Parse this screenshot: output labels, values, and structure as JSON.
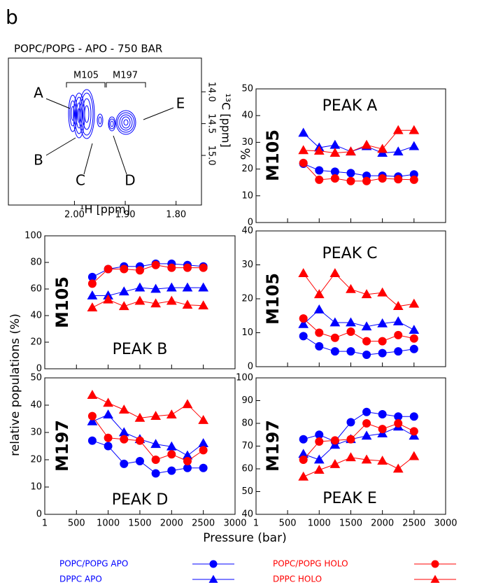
{
  "figure": {
    "panel_label": "b",
    "ylabel": "relative populations (%)",
    "xlabel": "Pressure (bar)"
  },
  "chart_data": [
    {
      "type": "spectrum",
      "title": "POPC/POPG - APO - 750 BAR",
      "xlabel": "¹H [ppm]",
      "ylabel": "¹³C [ppm]",
      "xlim": [
        2.13,
        1.75
      ],
      "ylim": [
        13.47,
        15.78
      ],
      "xticks": [
        {
          "value": 2,
          "label": "2.00"
        },
        {
          "value": 1.9,
          "label": "1.90"
        },
        {
          "value": 1.8,
          "label": "1.80"
        }
      ],
      "yticks": [
        {
          "value": 14,
          "label": "14.0"
        },
        {
          "value": 14.5,
          "label": "14.5"
        },
        {
          "value": 15,
          "label": "15.0"
        }
      ],
      "annotations": [
        "A",
        "B",
        "C",
        "D",
        "E",
        "M105",
        "M197"
      ]
    },
    {
      "type": "line",
      "title": "PEAK A",
      "side_label": "M105",
      "ylabel": "%",
      "x": [
        750,
        1000,
        1250,
        1500,
        1750,
        2000,
        2250,
        2500
      ],
      "xlim": [
        1,
        3000
      ],
      "xticks": [
        1,
        500,
        1000,
        1500,
        2000,
        2500,
        3000
      ],
      "ylim": [
        0,
        50
      ],
      "yticks": [
        0,
        10,
        20,
        30,
        40,
        50
      ],
      "series": [
        {
          "name": "POPC/POPG APO",
          "color": "#0000ff",
          "marker": "circle",
          "values": [
            22,
            19.5,
            19,
            18.5,
            17.5,
            17.5,
            17.2,
            18
          ]
        },
        {
          "name": "DPPC APO",
          "color": "#0000ff",
          "marker": "triangle",
          "values": [
            33.5,
            28,
            29,
            26.5,
            28.5,
            26,
            26.5,
            28.5
          ]
        },
        {
          "name": "POPC/POPG HOLO",
          "color": "#ff0000",
          "marker": "circle",
          "values": [
            22.3,
            16,
            16.5,
            15.5,
            15.5,
            16.5,
            16.2,
            16
          ]
        },
        {
          "name": "DPPC HOLO",
          "color": "#ff0000",
          "marker": "triangle",
          "values": [
            27,
            26.8,
            26,
            26.5,
            29,
            27.5,
            34.5,
            34.5
          ]
        }
      ]
    },
    {
      "type": "line",
      "title": "PEAK B",
      "side_label": "M105",
      "x": [
        750,
        1000,
        1250,
        1500,
        1750,
        2000,
        2250,
        2500
      ],
      "xlim": [
        1,
        3000
      ],
      "xticks": [
        1,
        500,
        1000,
        1500,
        2000,
        2500,
        3000
      ],
      "ylim": [
        0,
        100
      ],
      "yticks": [
        0,
        20,
        40,
        60,
        80,
        100
      ],
      "series": [
        {
          "values": [
            69,
            75,
            77,
            77,
            79,
            79,
            78,
            77
          ]
        },
        {
          "values": [
            55,
            55,
            58,
            61,
            60,
            61,
            61,
            61
          ]
        },
        {
          "values": [
            64,
            75,
            75,
            74,
            78,
            76,
            76,
            76
          ]
        },
        {
          "values": [
            46,
            52,
            47,
            51,
            49,
            51,
            48,
            47.5
          ]
        }
      ]
    },
    {
      "type": "line",
      "title": "PEAK C",
      "side_label": "M105",
      "x": [
        750,
        1000,
        1250,
        1500,
        1750,
        2000,
        2250,
        2500
      ],
      "xlim": [
        1,
        3000
      ],
      "xticks": [
        1,
        500,
        1000,
        1500,
        2000,
        2500,
        3000
      ],
      "ylim": [
        0,
        40
      ],
      "yticks": [
        0,
        10,
        20,
        30,
        40
      ],
      "series": [
        {
          "values": [
            9,
            6,
            4.5,
            4.5,
            3.5,
            4,
            4.5,
            5.2
          ]
        },
        {
          "values": [
            12.5,
            16.8,
            13,
            13,
            11.8,
            12.7,
            13.3,
            10.8
          ]
        },
        {
          "values": [
            14.2,
            10,
            8.5,
            10.3,
            7.5,
            7.5,
            9.3,
            8.3
          ]
        },
        {
          "values": [
            27.5,
            21.3,
            27.5,
            22.8,
            21.3,
            21.8,
            17.8,
            18.5
          ]
        }
      ]
    },
    {
      "type": "line",
      "title": "PEAK D",
      "side_label": "M197",
      "x": [
        750,
        1000,
        1250,
        1500,
        1750,
        2000,
        2250,
        2500
      ],
      "xlim": [
        1,
        3000
      ],
      "xticks": [
        1,
        500,
        1000,
        1500,
        2000,
        2500,
        3000
      ],
      "ylim": [
        0,
        50
      ],
      "yticks": [
        0,
        10,
        20,
        30,
        40,
        50
      ],
      "series": [
        {
          "values": [
            27,
            25,
            18.5,
            19.5,
            15,
            16,
            17,
            17
          ]
        },
        {
          "values": [
            34,
            36.5,
            30,
            27.5,
            25.7,
            24.8,
            21.5,
            26
          ]
        },
        {
          "values": [
            36,
            28,
            27.5,
            27,
            20,
            22,
            19.5,
            23.5
          ]
        },
        {
          "values": [
            43.7,
            40.8,
            38.3,
            35.3,
            36,
            36.5,
            40.3,
            34.5
          ]
        }
      ]
    },
    {
      "type": "line",
      "title": "PEAK E",
      "side_label": "M197",
      "x": [
        750,
        1000,
        1250,
        1500,
        1750,
        2000,
        2250,
        2500
      ],
      "xlim": [
        1,
        3000
      ],
      "xticks": [
        1,
        500,
        1000,
        1500,
        2000,
        2500,
        3000
      ],
      "ylim": [
        40,
        100
      ],
      "yticks": [
        40,
        50,
        60,
        70,
        80,
        90,
        100
      ],
      "series": [
        {
          "values": [
            73,
            75,
            72,
            80.5,
            85,
            84,
            83,
            83
          ]
        },
        {
          "values": [
            66.5,
            64,
            70.5,
            73,
            74.5,
            75.5,
            78.5,
            74.5
          ]
        },
        {
          "values": [
            64,
            72,
            72.5,
            73,
            80,
            77.5,
            80,
            76.5
          ]
        },
        {
          "values": [
            56.5,
            59.5,
            62,
            65,
            64,
            63.5,
            60,
            65.5
          ]
        }
      ]
    }
  ]
}
